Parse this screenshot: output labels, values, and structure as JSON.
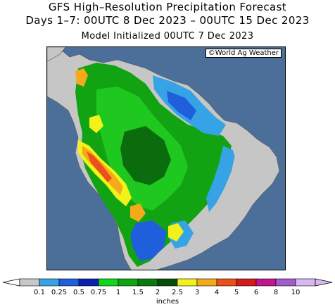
{
  "title": {
    "line1": "GFS High–Resolution Precipitation Forecast",
    "line2": "Days 1–7: 00UTC 8 Dec 2023 – 00UTC 15 Dec 2023",
    "line3": "Model Initialized 00UTC 7 Dec 2023"
  },
  "map": {
    "credit": "©World Ag Weather",
    "ocean_color": "#4b6f98",
    "land_color": "#c6c6c6"
  },
  "legend": {
    "units": "inches",
    "ticks": [
      "0.1",
      "0.25",
      "0.5",
      "0.75",
      "1",
      "1.5",
      "2",
      "2.5",
      "3",
      "4",
      "5",
      "6",
      "8",
      "10"
    ],
    "colors": [
      "#c8c8c8",
      "#35a3e6",
      "#1f5fdc",
      "#0b22b0",
      "#11d619",
      "#11a512",
      "#0b7a0d",
      "#064d08",
      "#f2f21a",
      "#f5aa1a",
      "#e8501c",
      "#d41a1a",
      "#c2168e",
      "#a45ac8",
      "#d8b8f0"
    ]
  }
}
